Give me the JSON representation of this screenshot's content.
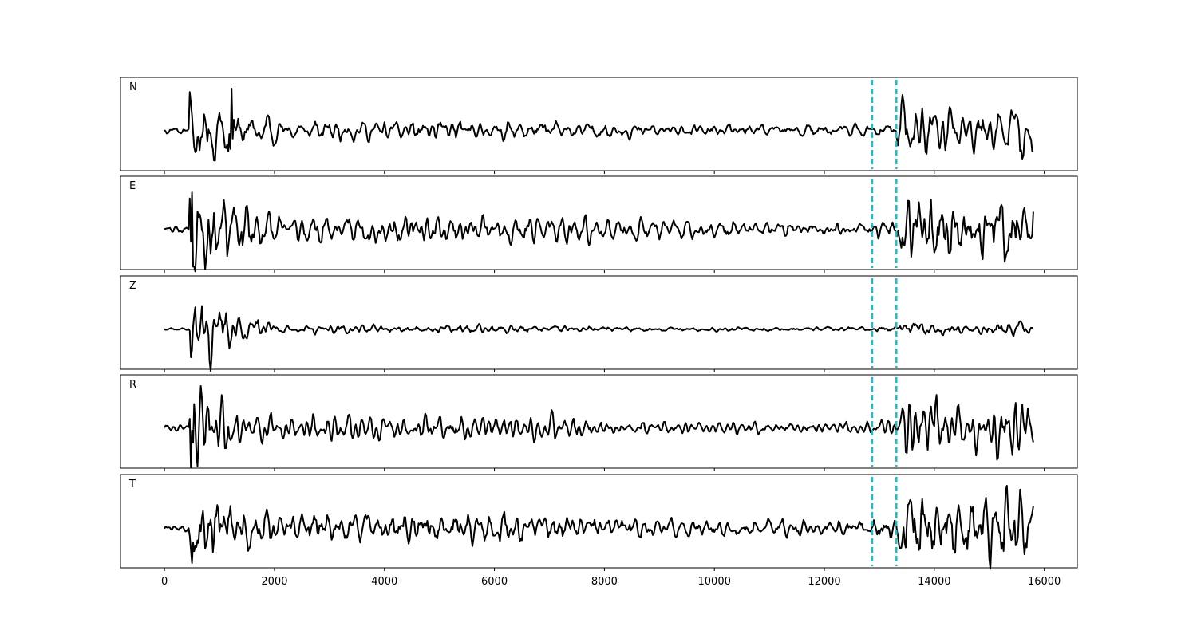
{
  "chart_data": {
    "type": "line",
    "title": "",
    "xlabel": "",
    "ylabel": "",
    "xlim": [
      -800,
      16600
    ],
    "x_ticks": [
      0,
      2000,
      4000,
      6000,
      8000,
      10000,
      12000,
      14000,
      16000
    ],
    "x_tick_labels": [
      "0",
      "2000",
      "4000",
      "6000",
      "8000",
      "10000",
      "12000",
      "14000",
      "16000"
    ],
    "sample_count": 15800,
    "grid": false,
    "legend": "none",
    "trace_color": "#000000",
    "pick_color": "#17becf",
    "picks": [
      12870,
      13310
    ],
    "series": [
      {
        "name": "N",
        "label": "N",
        "seed": 11,
        "onset": 450,
        "pre_amp": 0.3,
        "burst_amp": 3.2,
        "mid_amp": 1.0,
        "late_amp": 0.55,
        "tail_amp": 2.8,
        "peak": 1220
      },
      {
        "name": "E",
        "label": "E",
        "seed": 23,
        "onset": 450,
        "pre_amp": 0.3,
        "burst_amp": 3.6,
        "mid_amp": 1.15,
        "late_amp": 0.65,
        "tail_amp": 3.2,
        "peak": 500
      },
      {
        "name": "Z",
        "label": "Z",
        "seed": 37,
        "onset": 450,
        "pre_amp": 0.15,
        "burst_amp": 5.2,
        "mid_amp": 0.55,
        "late_amp": 0.3,
        "tail_amp": 1.0,
        "peak": 490
      },
      {
        "name": "R",
        "label": "R",
        "seed": 41,
        "onset": 450,
        "pre_amp": 0.3,
        "burst_amp": 3.0,
        "mid_amp": 1.05,
        "late_amp": 0.5,
        "tail_amp": 3.0,
        "peak": 500
      },
      {
        "name": "T",
        "label": "T",
        "seed": 53,
        "onset": 450,
        "pre_amp": 0.3,
        "burst_amp": 3.4,
        "mid_amp": 1.15,
        "late_amp": 0.6,
        "tail_amp": 3.3,
        "peak": 1210
      }
    ]
  }
}
